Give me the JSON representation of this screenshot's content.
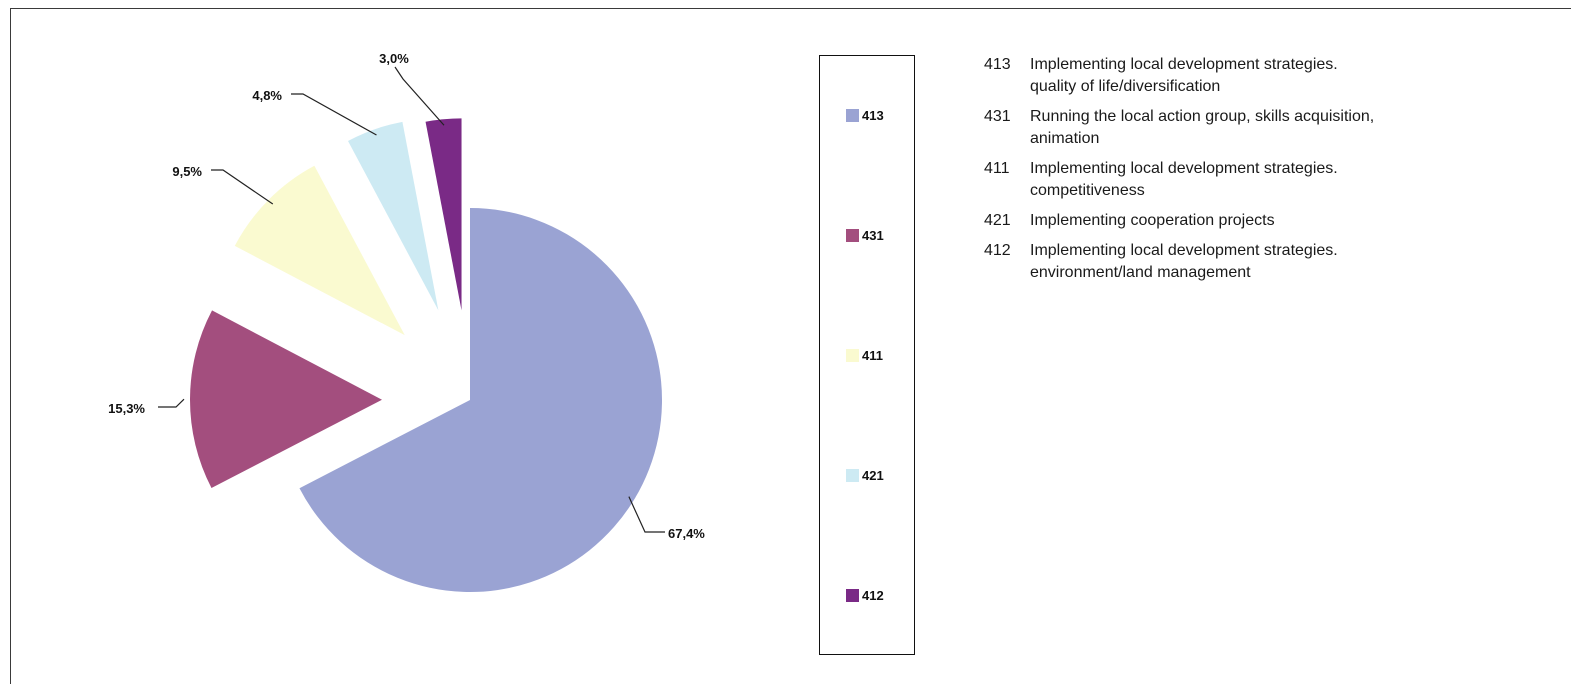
{
  "chart_data": {
    "type": "pie",
    "title": "",
    "exploded": true,
    "slices": [
      {
        "code": "413",
        "value": 67.4,
        "label": "67,4%",
        "color": "#9aa3d3",
        "description": "Implementing local development strategies. quality of life/diversification"
      },
      {
        "code": "431",
        "value": 15.3,
        "label": "15,3%",
        "color": "#a34e7e",
        "description": "Running the local action group, skills acquisition, animation"
      },
      {
        "code": "411",
        "value": 9.5,
        "label": "9,5%",
        "color": "#fafad0",
        "description": "Implementing local development strategies. competitiveness"
      },
      {
        "code": "421",
        "value": 4.8,
        "label": "4,8%",
        "color": "#cdeaf3",
        "description": "Implementing cooperation projects"
      },
      {
        "code": "412",
        "value": 3.0,
        "label": "3,0%",
        "color": "#7a2a86",
        "description": "Implementing local development strategies. environment/land management"
      }
    ],
    "legend_placement": "right"
  },
  "legend": {
    "items": [
      {
        "code": "413",
        "color": "#9aa3d3"
      },
      {
        "code": "431",
        "color": "#a34e7e"
      },
      {
        "code": "411",
        "color": "#fafad0"
      },
      {
        "code": "421",
        "color": "#cdeaf3"
      },
      {
        "code": "412",
        "color": "#7a2a86"
      }
    ]
  },
  "descriptions": [
    {
      "code": "413",
      "text_line1": "Implementing local development strategies.",
      "text_line2": "quality of life/diversification"
    },
    {
      "code": "431",
      "text_line1": "Running the local action group, skills acquisition,",
      "text_line2": "animation"
    },
    {
      "code": "411",
      "text_line1": "Implementing local development strategies.",
      "text_line2": "competitiveness"
    },
    {
      "code": "421",
      "text_line1": "Implementing cooperation projects",
      "text_line2": ""
    },
    {
      "code": "412",
      "text_line1": "Implementing local development strategies.",
      "text_line2": "environment/land management"
    }
  ]
}
